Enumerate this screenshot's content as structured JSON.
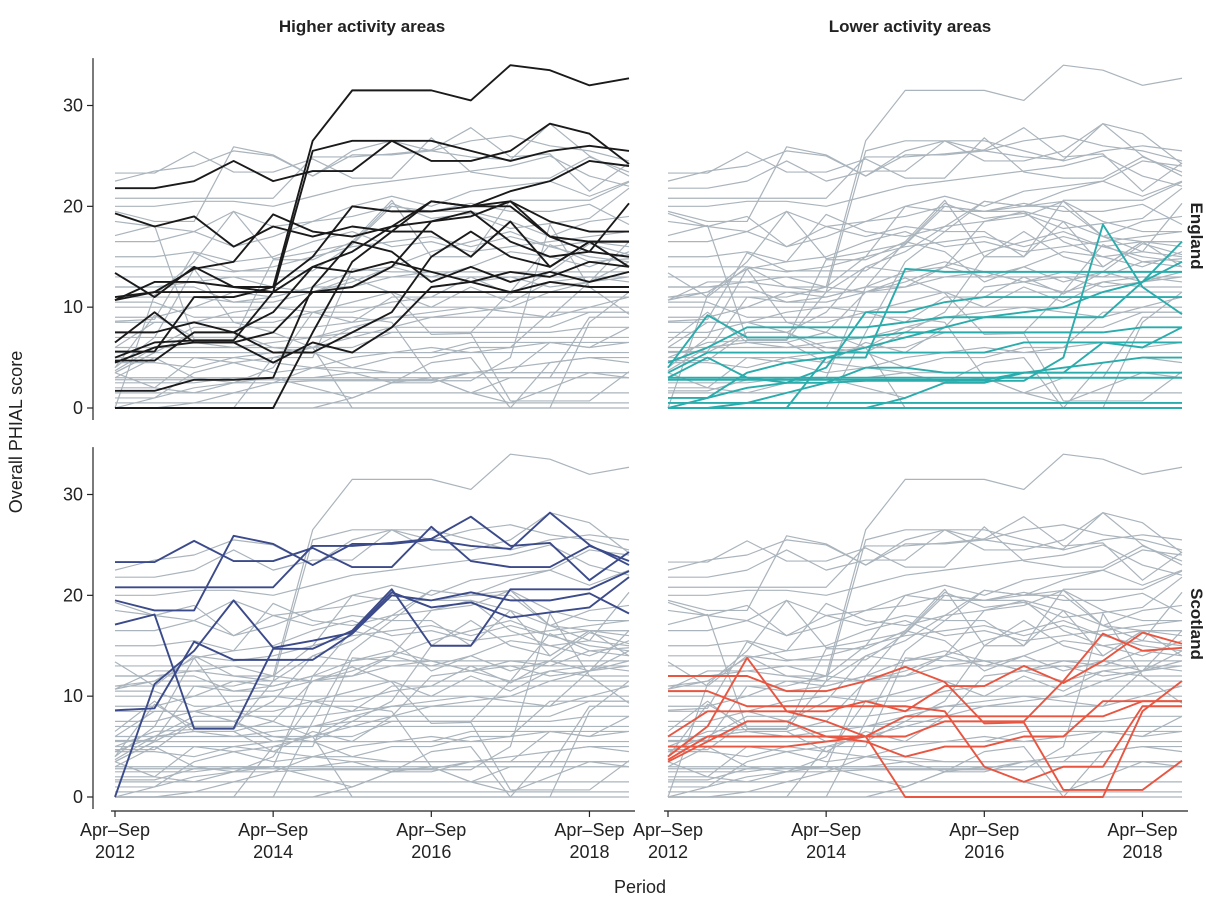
{
  "chart_data": {
    "type": "line",
    "ylabel": "Overall PHIAL score",
    "xlabel": "Period",
    "column_labels": [
      "Higher activity areas",
      "Lower activity areas"
    ],
    "row_labels": [
      "England",
      "Scotland"
    ],
    "ylim": [
      0,
      35
    ],
    "y_ticks": [
      0,
      10,
      20,
      30
    ],
    "y_tick_labels": [
      "0",
      "10",
      "20",
      "30"
    ],
    "x_ticks": [
      0,
      4,
      8,
      12
    ],
    "x_tick_labels": [
      [
        "Apr–Sep",
        "2012"
      ],
      [
        "Apr–Sep",
        "2014"
      ],
      [
        "Apr–Sep",
        "2016"
      ],
      [
        "Apr–Sep",
        "2018"
      ]
    ],
    "periods": 14,
    "colors": {
      "background_series": "#aab4bc",
      "england_higher": "#1a1a1a",
      "england_lower": "#2aacac",
      "scotland_higher": "#3b4a8a",
      "scotland_lower": "#e85540"
    },
    "series": [
      {
        "group": "england_higher",
        "values": [
          21.8,
          21.8,
          22.5,
          24.5,
          22.5,
          23.5,
          23.5,
          26.5,
          26.5,
          25.5,
          24.5,
          25.5,
          26.0,
          25.5
        ]
      },
      {
        "group": "england_higher",
        "values": [
          19.3,
          18.0,
          19.0,
          16.0,
          18.0,
          17.0,
          18.0,
          17.5,
          20.5,
          20.0,
          21.5,
          22.5,
          24.5,
          24.0
        ]
      },
      {
        "group": "england_higher",
        "values": [
          13.4,
          11.0,
          14.0,
          12.0,
          11.5,
          25.5,
          26.5,
          26.5,
          24.5,
          24.5,
          25.5,
          28.2,
          27.2,
          24.2
        ]
      },
      {
        "group": "england_higher",
        "values": [
          10.7,
          12.5,
          12.5,
          12.0,
          12.0,
          26.5,
          31.5,
          31.5,
          31.5,
          30.5,
          34.0,
          33.5,
          32.0,
          32.7
        ]
      },
      {
        "group": "england_higher",
        "values": [
          5.6,
          5.6,
          11.0,
          11.0,
          12.0,
          15.0,
          20.0,
          19.5,
          19.5,
          20.0,
          20.5,
          18.5,
          17.5,
          17.5
        ]
      },
      {
        "group": "england_higher",
        "values": [
          7.5,
          7.5,
          8.5,
          7.5,
          9.5,
          14.0,
          15.5,
          18.0,
          20.5,
          20.0,
          20.0,
          17.0,
          16.5,
          16.5
        ]
      },
      {
        "group": "england_higher",
        "values": [
          6.5,
          9.5,
          6.5,
          6.5,
          7.5,
          11.5,
          12.0,
          14.0,
          18.5,
          19.5,
          16.5,
          15.0,
          15.5,
          15.0
        ]
      },
      {
        "group": "england_higher",
        "values": [
          5.0,
          6.5,
          6.7,
          6.7,
          11.5,
          11.5,
          11.5,
          11.5,
          11.5,
          11.5,
          11.5,
          11.5,
          11.5,
          11.5
        ]
      },
      {
        "group": "england_higher",
        "values": [
          11.0,
          11.5,
          11.5,
          11.5,
          11.5,
          14.0,
          13.5,
          14.5,
          13.5,
          12.5,
          13.5,
          13.0,
          14.5,
          14.0
        ]
      },
      {
        "group": "england_higher",
        "values": [
          1.7,
          1.7,
          2.8,
          2.8,
          3.0,
          12.0,
          16.5,
          15.5,
          12.5,
          14.0,
          12.5,
          13.5,
          12.5,
          13.5
        ]
      },
      {
        "group": "england_higher",
        "values": [
          0.0,
          0.0,
          0.0,
          0.0,
          0.0,
          7.5,
          14.5,
          17.5,
          17.5,
          15.0,
          18.5,
          14.0,
          16.5,
          14.0
        ]
      },
      {
        "group": "england_higher",
        "values": [
          4.7,
          4.7,
          7.5,
          7.5,
          5.5,
          5.5,
          7.5,
          9.5,
          15.0,
          17.5,
          15.0,
          14.0,
          16.5,
          16.5
        ]
      },
      {
        "group": "england_higher",
        "values": [
          4.5,
          6.0,
          6.5,
          6.5,
          4.5,
          6.5,
          5.5,
          8.0,
          12.0,
          12.5,
          11.5,
          12.5,
          12.0,
          12.0
        ]
      },
      {
        "group": "england_higher",
        "values": [
          10.7,
          11.5,
          13.8,
          14.5,
          19.2,
          17.5,
          17.0,
          18.0,
          18.5,
          19.0,
          20.5,
          17.0,
          15.5,
          20.3
        ]
      },
      {
        "group": "england_lower",
        "values": [
          3.5,
          5.5,
          5.5,
          5.5,
          5.5,
          5.5,
          5.5,
          5.5,
          5.5,
          6.5,
          6.5,
          6.5,
          6.5,
          6.5
        ]
      },
      {
        "group": "england_lower",
        "values": [
          0.5,
          0.5,
          0.5,
          0.5,
          0.5,
          0.5,
          0.5,
          0.5,
          0.5,
          0.5,
          0.5,
          0.5,
          0.5,
          0.5
        ]
      },
      {
        "group": "england_lower",
        "values": [
          2.8,
          2.8,
          2.8,
          2.8,
          2.8,
          2.8,
          2.8,
          2.8,
          2.8,
          3.5,
          3.5,
          3.5,
          3.5,
          3.5
        ]
      },
      {
        "group": "england_lower",
        "values": [
          4.0,
          9.2,
          7.0,
          7.0,
          7.0,
          7.0,
          7.5,
          7.5,
          7.5,
          7.5,
          7.5,
          7.5,
          8.0,
          8.0
        ]
      },
      {
        "group": "england_lower",
        "values": [
          4.5,
          6.0,
          8.0,
          8.0,
          8.0,
          8.0,
          8.5,
          9.0,
          9.0,
          9.0,
          9.0,
          9.0,
          12.5,
          16.5
        ]
      },
      {
        "group": "england_lower",
        "values": [
          0.0,
          0.0,
          0.5,
          1.5,
          2.5,
          2.7,
          2.7,
          2.7,
          2.7,
          2.7,
          5.0,
          18.2,
          12.0,
          9.3
        ]
      },
      {
        "group": "england_lower",
        "values": [
          0.0,
          0.0,
          0.0,
          0.0,
          5.0,
          5.0,
          13.8,
          13.5,
          13.5,
          13.5,
          13.5,
          13.5,
          13.5,
          13.5
        ]
      },
      {
        "group": "england_lower",
        "values": [
          0.0,
          1.0,
          2.0,
          2.5,
          4.0,
          9.5,
          9.5,
          10.5,
          11.0,
          11.0,
          11.0,
          11.0,
          11.0,
          11.0
        ]
      },
      {
        "group": "england_lower",
        "values": [
          1.0,
          1.0,
          3.5,
          4.5,
          5.0,
          6.0,
          7.0,
          8.0,
          9.0,
          9.5,
          10.0,
          11.5,
          12.5,
          14.5
        ]
      },
      {
        "group": "england_lower",
        "values": [
          0.0,
          0.0,
          0.0,
          0.0,
          0.0,
          0.0,
          1.0,
          2.5,
          2.5,
          3.5,
          3.5,
          6.5,
          6.0,
          8.0
        ]
      },
      {
        "group": "england_lower",
        "values": [
          3.0,
          5.0,
          3.0,
          2.5,
          2.5,
          4.0,
          4.0,
          3.5,
          3.5,
          3.5,
          4.0,
          4.5,
          5.0,
          5.0
        ]
      },
      {
        "group": "england_lower",
        "values": [
          3.0,
          3.0,
          3.0,
          3.0,
          3.0,
          3.0,
          3.0,
          3.0,
          3.0,
          3.0,
          3.0,
          3.0,
          3.0,
          3.0
        ]
      },
      {
        "group": "england_lower",
        "values": [
          0.0,
          0.0,
          0.0,
          0.0,
          0.0,
          0.0,
          0.0,
          0.0,
          0.0,
          0.0,
          0.0,
          0.0,
          0.0,
          0.0
        ]
      },
      {
        "group": "scotland_higher",
        "values": [
          23.3,
          23.3,
          25.4,
          23.4,
          23.4,
          24.7,
          22.8,
          22.8,
          26.8,
          23.4,
          22.8,
          22.8,
          24.9,
          23.4
        ]
      },
      {
        "group": "scotland_higher",
        "values": [
          20.8,
          20.8,
          20.8,
          20.8,
          20.8,
          24.9,
          24.9,
          25.2,
          25.6,
          27.8,
          24.9,
          25.2,
          21.5,
          24.3
        ]
      },
      {
        "group": "scotland_higher",
        "values": [
          19.5,
          18.5,
          18.5,
          25.9,
          25.1,
          23.0,
          25.1,
          25.1,
          25.5,
          24.9,
          24.6,
          28.2,
          25.0,
          23.0
        ]
      },
      {
        "group": "scotland_higher",
        "values": [
          17.1,
          18.1,
          6.8,
          6.8,
          14.7,
          14.7,
          16.5,
          20.6,
          15.0,
          15.0,
          20.6,
          20.6,
          20.6,
          22.4
        ]
      },
      {
        "group": "scotland_higher",
        "values": [
          8.6,
          8.8,
          15.4,
          13.6,
          13.6,
          13.6,
          16.2,
          20.0,
          19.5,
          20.3,
          19.5,
          19.5,
          20.2,
          18.2
        ]
      },
      {
        "group": "scotland_higher",
        "values": [
          0.0,
          11.2,
          14.5,
          19.5,
          14.8,
          15.5,
          16.3,
          20.3,
          18.8,
          19.3,
          17.8,
          18.3,
          18.8,
          21.8
        ]
      },
      {
        "group": "scotland_lower",
        "values": [
          12.0,
          12.0,
          12.0,
          10.5,
          10.5,
          11.5,
          12.9,
          11.4,
          7.3,
          7.4,
          0.7,
          0.7,
          0.7,
          3.6
        ]
      },
      {
        "group": "scotland_lower",
        "values": [
          10.5,
          10.5,
          9.0,
          9.0,
          9.0,
          9.0,
          9.0,
          8.5,
          3.0,
          1.5,
          3.0,
          3.0,
          9.0,
          9.0
        ]
      },
      {
        "group": "scotland_lower",
        "values": [
          4.0,
          7.0,
          13.8,
          8.5,
          7.5,
          6.0,
          0.0,
          0.0,
          0.0,
          0.0,
          0.0,
          0.0,
          8.5,
          11.5
        ]
      },
      {
        "group": "scotland_lower",
        "values": [
          5.0,
          5.0,
          5.0,
          5.0,
          5.5,
          6.0,
          6.0,
          7.5,
          7.5,
          7.5,
          11.5,
          16.2,
          14.5,
          14.8
        ]
      },
      {
        "group": "scotland_lower",
        "values": [
          6.0,
          8.5,
          8.5,
          8.5,
          8.5,
          9.5,
          8.5,
          11.0,
          11.0,
          13.0,
          11.3,
          13.5,
          16.3,
          15.2
        ]
      },
      {
        "group": "scotland_lower",
        "values": [
          3.5,
          5.5,
          7.5,
          7.5,
          6.0,
          5.5,
          4.0,
          5.0,
          5.0,
          6.0,
          6.0,
          9.5,
          9.5,
          9.5
        ]
      },
      {
        "group": "scotland_lower",
        "values": [
          3.7,
          6.0,
          6.0,
          6.0,
          6.0,
          6.0,
          8.0,
          8.0,
          8.0,
          8.0,
          8.0,
          8.0,
          9.5,
          9.5
        ]
      },
      {
        "group": "background",
        "values": [
          20.0,
          20.0,
          20.5,
          20.5,
          20.0,
          21.0,
          22.0,
          22.5,
          23.0,
          23.5,
          24.0,
          25.0,
          23.0,
          22.0
        ]
      },
      {
        "group": "background",
        "values": [
          16.5,
          16.5,
          17.5,
          16.0,
          17.0,
          18.5,
          19.0,
          20.0,
          19.5,
          19.5,
          18.5,
          17.0,
          18.5,
          19.0
        ]
      },
      {
        "group": "background",
        "values": [
          14.0,
          14.0,
          14.0,
          13.5,
          14.0,
          15.0,
          16.0,
          16.5,
          17.0,
          16.0,
          17.0,
          16.0,
          16.5,
          16.0
        ]
      },
      {
        "group": "background",
        "values": [
          9.0,
          9.0,
          10.0,
          11.5,
          11.0,
          12.0,
          13.5,
          14.0,
          13.0,
          14.0,
          15.5,
          15.0,
          14.0,
          15.5
        ]
      },
      {
        "group": "background",
        "values": [
          8.5,
          8.5,
          8.5,
          9.5,
          10.0,
          9.5,
          10.5,
          11.5,
          10.0,
          12.0,
          10.5,
          12.5,
          13.0,
          12.5
        ]
      },
      {
        "group": "background",
        "values": [
          7.0,
          7.0,
          7.0,
          7.0,
          7.0,
          7.0,
          7.0,
          7.0,
          7.0,
          7.0,
          7.0,
          7.0,
          7.0,
          7.0
        ]
      },
      {
        "group": "background",
        "values": [
          6.0,
          6.0,
          6.5,
          6.0,
          6.5,
          7.0,
          8.0,
          9.0,
          9.5,
          10.0,
          9.5,
          9.0,
          10.0,
          11.0
        ]
      },
      {
        "group": "background",
        "values": [
          5.5,
          5.5,
          5.5,
          5.5,
          5.5,
          5.5,
          5.5,
          5.5,
          5.5,
          5.5,
          5.5,
          5.5,
          5.5,
          5.5
        ]
      },
      {
        "group": "background",
        "values": [
          4.5,
          4.5,
          4.0,
          5.0,
          4.5,
          4.0,
          5.0,
          5.5,
          6.0,
          5.5,
          6.0,
          6.5,
          6.0,
          6.5
        ]
      },
      {
        "group": "background",
        "values": [
          3.5,
          2.0,
          1.5,
          2.5,
          3.0,
          2.0,
          1.0,
          2.5,
          3.0,
          1.5,
          0.5,
          2.0,
          3.5,
          3.0
        ]
      },
      {
        "group": "background",
        "values": [
          1.5,
          1.5,
          1.5,
          1.5,
          1.5,
          1.5,
          1.5,
          1.5,
          1.5,
          1.5,
          1.5,
          1.5,
          1.5,
          1.5
        ]
      },
      {
        "group": "background",
        "values": [
          2.5,
          2.5,
          2.5,
          3.0,
          3.0,
          3.0,
          3.5,
          3.5,
          3.5,
          3.5,
          3.5,
          3.5,
          3.5,
          3.5
        ]
      },
      {
        "group": "background",
        "values": [
          0.5,
          0.5,
          0.5,
          0.5,
          0.5,
          0.5,
          0.5,
          0.5,
          0.5,
          0.5,
          0.5,
          0.5,
          0.5,
          0.5
        ]
      },
      {
        "group": "background",
        "values": [
          12.0,
          12.0,
          12.5,
          13.0,
          12.0,
          11.5,
          12.5,
          14.0,
          15.5,
          16.5,
          17.5,
          16.0,
          15.0,
          14.5
        ]
      },
      {
        "group": "background",
        "values": [
          22.5,
          23.5,
          24.0,
          25.5,
          25.0,
          23.0,
          25.5,
          26.5,
          25.5,
          26.5,
          27.0,
          26.0,
          25.5,
          24.5
        ]
      },
      {
        "group": "background",
        "values": [
          11.0,
          11.0,
          11.0,
          10.5,
          11.0,
          12.0,
          12.0,
          13.0,
          13.5,
          12.5,
          13.0,
          12.0,
          12.5,
          13.0
        ]
      },
      {
        "group": "background",
        "values": [
          18.5,
          18.0,
          17.5,
          19.5,
          18.0,
          18.5,
          20.0,
          21.0,
          20.0,
          21.5,
          22.0,
          22.5,
          21.0,
          22.5
        ]
      },
      {
        "group": "background",
        "values": [
          15.0,
          15.0,
          15.5,
          14.5,
          15.0,
          16.5,
          17.5,
          16.0,
          16.5,
          15.5,
          16.0,
          16.5,
          17.0,
          17.5
        ]
      },
      {
        "group": "background",
        "values": [
          10.0,
          10.0,
          10.0,
          10.0,
          10.0,
          10.0,
          10.0,
          10.0,
          10.0,
          10.0,
          10.0,
          10.0,
          10.0,
          10.0
        ]
      },
      {
        "group": "background",
        "values": [
          13.0,
          13.0,
          13.0,
          13.0,
          13.0,
          13.0,
          13.0,
          13.0,
          13.0,
          13.0,
          13.0,
          13.0,
          13.0,
          13.0
        ]
      },
      {
        "group": "background",
        "values": [
          2.0,
          2.0,
          5.0,
          4.5,
          3.5,
          4.0,
          3.5,
          2.5,
          4.5,
          5.0,
          0.0,
          4.5,
          5.0,
          4.5
        ]
      }
    ]
  }
}
